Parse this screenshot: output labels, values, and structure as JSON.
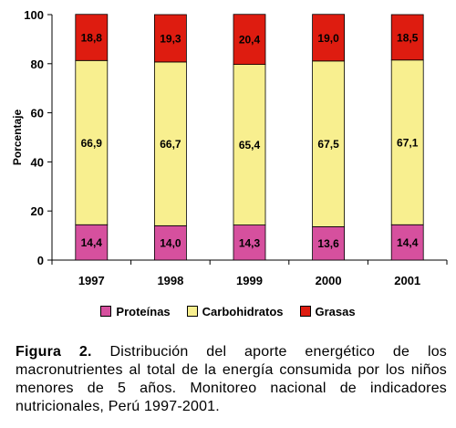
{
  "chart_data": {
    "type": "bar",
    "stacked": true,
    "categories": [
      "1997",
      "1998",
      "1999",
      "2000",
      "2001"
    ],
    "series": [
      {
        "name": "Proteínas",
        "color": "#d6509e",
        "values": [
          14.4,
          14.0,
          14.3,
          13.6,
          14.4
        ],
        "labels": [
          "14,4",
          "14,0",
          "14,3",
          "13,6",
          "14,4"
        ]
      },
      {
        "name": "Carbohidratos",
        "color": "#f8ef8f",
        "values": [
          66.9,
          66.7,
          65.4,
          67.5,
          67.1
        ],
        "labels": [
          "66,9",
          "66,7",
          "65,4",
          "67,5",
          "67,1"
        ]
      },
      {
        "name": "Grasas",
        "color": "#de1c10",
        "values": [
          18.8,
          19.3,
          20.4,
          19.0,
          18.5
        ],
        "labels": [
          "18,8",
          "19,3",
          "20,4",
          "19,0",
          "18,5"
        ]
      }
    ],
    "ylabel": "Porcentaje",
    "ylim": [
      0,
      100
    ],
    "yticks": [
      0,
      20,
      40,
      60,
      80,
      100
    ],
    "legend_position": "bottom",
    "grid": false
  },
  "caption": {
    "label": "Figura 2.",
    "text": " Distribución del aporte energético de los macronutrientes al total de la energía consumida por los niños menores de 5 años. Monitoreo nacional de indicadores nutricionales, Perú 1997-2001."
  }
}
